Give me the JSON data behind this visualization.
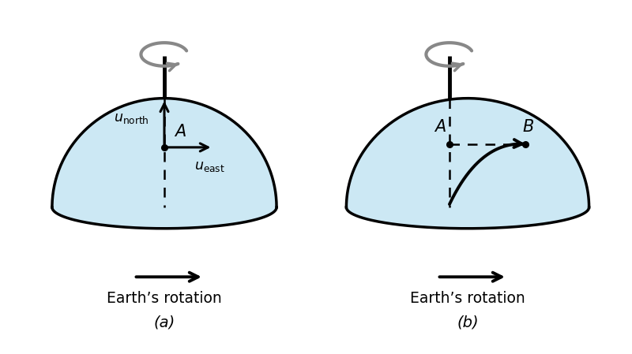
{
  "bg_color": "#ffffff",
  "dome_fill": "#cce8f4",
  "dome_edge": "#000000",
  "dome_lw": 2.5,
  "label_a": "(a)",
  "label_b": "(b)",
  "rotation_label": "Earth’s rotation",
  "dome_fill_color": "#b8dff0"
}
